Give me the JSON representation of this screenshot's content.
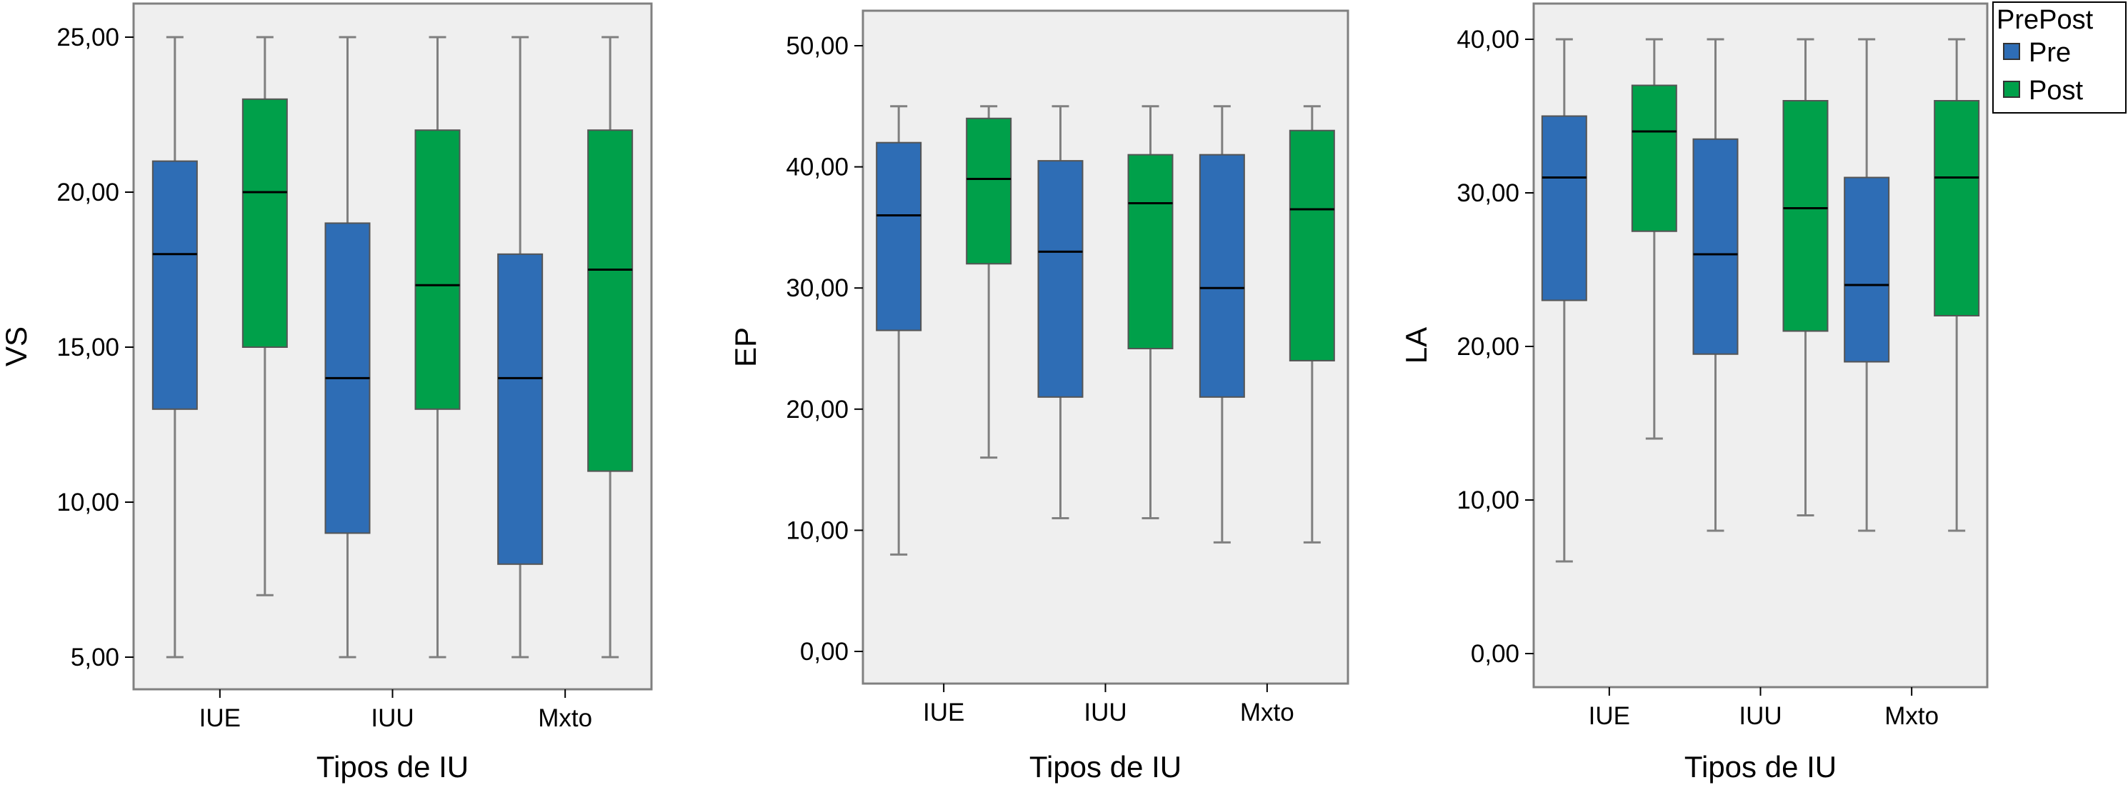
{
  "chart_data": [
    {
      "type": "boxplot",
      "ylabel": "VS",
      "xlabel": "Tipos de IU",
      "categories": [
        "IUE",
        "IUU",
        "Mxto"
      ],
      "ylim": [
        5,
        25
      ],
      "yticks": [
        "5,00",
        "10,00",
        "15,00",
        "20,00",
        "25,00"
      ],
      "ytick_values": [
        5,
        10,
        15,
        20,
        25
      ],
      "series": [
        {
          "name": "Pre",
          "boxes": [
            {
              "min": 5,
              "q1": 13,
              "median": 18,
              "q3": 21,
              "max": 25
            },
            {
              "min": 5,
              "q1": 9,
              "median": 14,
              "q3": 19,
              "max": 25
            },
            {
              "min": 5,
              "q1": 8,
              "median": 14,
              "q3": 18,
              "max": 25
            }
          ]
        },
        {
          "name": "Post",
          "boxes": [
            {
              "min": 7,
              "q1": 15,
              "median": 20,
              "q3": 23,
              "max": 25
            },
            {
              "min": 5,
              "q1": 13,
              "median": 17,
              "q3": 22,
              "max": 25
            },
            {
              "min": 5,
              "q1": 11,
              "median": 17.5,
              "q3": 22,
              "max": 25
            }
          ]
        }
      ]
    },
    {
      "type": "boxplot",
      "ylabel": "EP",
      "xlabel": "Tipos de IU",
      "categories": [
        "IUE",
        "IUU",
        "Mxto"
      ],
      "ylim": [
        -2.5,
        52.5
      ],
      "yticks": [
        "0,00",
        "10,00",
        "20,00",
        "30,00",
        "40,00",
        "50,00"
      ],
      "ytick_values": [
        0,
        10,
        20,
        30,
        40,
        50
      ],
      "series": [
        {
          "name": "Pre",
          "boxes": [
            {
              "min": 8,
              "q1": 26.5,
              "median": 36,
              "q3": 42,
              "max": 45
            },
            {
              "min": 11,
              "q1": 21,
              "median": 33,
              "q3": 40.5,
              "max": 45
            },
            {
              "min": 9,
              "q1": 21,
              "median": 30,
              "q3": 41,
              "max": 45
            }
          ]
        },
        {
          "name": "Post",
          "boxes": [
            {
              "min": 16,
              "q1": 32,
              "median": 39,
              "q3": 44,
              "max": 45
            },
            {
              "min": 11,
              "q1": 25,
              "median": 37,
              "q3": 41,
              "max": 45
            },
            {
              "min": 9,
              "q1": 24,
              "median": 36.5,
              "q3": 43,
              "max": 45
            }
          ]
        }
      ]
    },
    {
      "type": "boxplot",
      "ylabel": "LA",
      "xlabel": "Tipos de IU",
      "categories": [
        "IUE",
        "IUU",
        "Mxto"
      ],
      "ylim": [
        -2.5,
        42.5
      ],
      "yticks": [
        "0,00",
        "10,00",
        "20,00",
        "30,00",
        "40,00"
      ],
      "ytick_values": [
        0,
        10,
        20,
        30,
        40
      ],
      "series": [
        {
          "name": "Pre",
          "boxes": [
            {
              "min": 6,
              "q1": 23,
              "median": 31,
              "q3": 35,
              "max": 40
            },
            {
              "min": 8,
              "q1": 19.5,
              "median": 26,
              "q3": 33.5,
              "max": 40
            },
            {
              "min": 8,
              "q1": 19,
              "median": 24,
              "q3": 31,
              "max": 40
            }
          ]
        },
        {
          "name": "Post",
          "boxes": [
            {
              "min": 14,
              "q1": 27.5,
              "median": 34,
              "q3": 37,
              "max": 40
            },
            {
              "min": 9,
              "q1": 21,
              "median": 29,
              "q3": 36,
              "max": 40
            },
            {
              "min": 8,
              "q1": 22,
              "median": 31,
              "q3": 36,
              "max": 40
            }
          ]
        }
      ]
    }
  ],
  "legend": {
    "title": "PrePost",
    "items": [
      {
        "label": "Pre",
        "color": "#2e6db5"
      },
      {
        "label": "Post",
        "color": "#00a04a"
      }
    ],
    "placement": "top-right"
  },
  "colors": {
    "pre": "#2e6db5",
    "post": "#00a04a",
    "plot_background": "#efefef",
    "whisker": "#808080"
  }
}
